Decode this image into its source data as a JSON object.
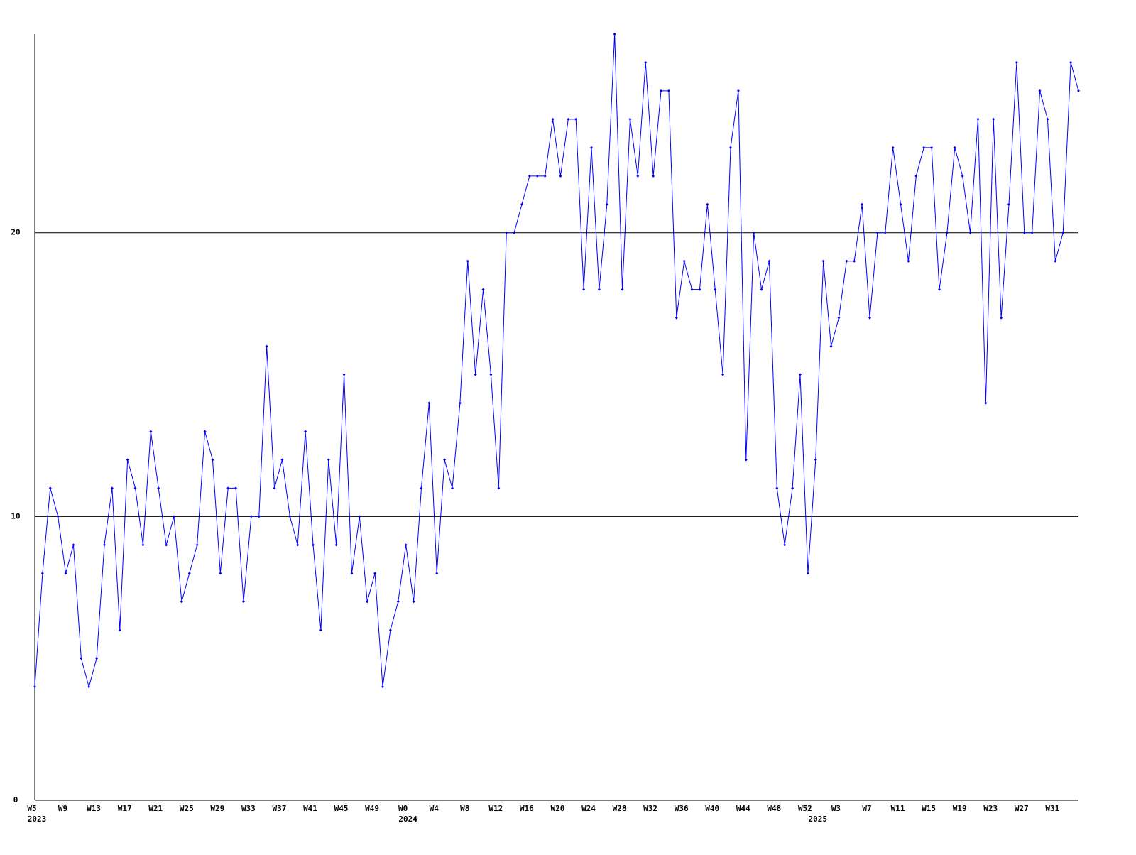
{
  "chart_data": {
    "type": "line",
    "categories": [
      "W5",
      null,
      null,
      null,
      "W9",
      null,
      null,
      null,
      "W13",
      null,
      null,
      null,
      "W17",
      null,
      null,
      null,
      "W21",
      null,
      null,
      null,
      "W25",
      null,
      null,
      null,
      "W29",
      null,
      null,
      null,
      "W33",
      null,
      null,
      null,
      "W37",
      null,
      null,
      null,
      "W41",
      null,
      null,
      null,
      "W45",
      null,
      null,
      null,
      "W49",
      null,
      null,
      null,
      "W0",
      null,
      null,
      null,
      "W4",
      null,
      null,
      null,
      "W8",
      null,
      null,
      null,
      "W12",
      null,
      null,
      null,
      "W16",
      null,
      null,
      null,
      "W20",
      null,
      null,
      null,
      "W24",
      null,
      null,
      null,
      "W28",
      null,
      null,
      null,
      "W32",
      null,
      null,
      null,
      "W36",
      null,
      null,
      null,
      "W40",
      null,
      null,
      null,
      "W44",
      null,
      null,
      null,
      "W48",
      null,
      null,
      null,
      "W52",
      null,
      null,
      null,
      "W3",
      null,
      null,
      null,
      "W7",
      null,
      null,
      null,
      "W11",
      null,
      null,
      null,
      "W15",
      null,
      null,
      null,
      "W19",
      null,
      null,
      null,
      "W23",
      null,
      null,
      null,
      "W27",
      null,
      null,
      null,
      "W31",
      null,
      null,
      null
    ],
    "category_groups": [
      "2023",
      null,
      null,
      null,
      null,
      null,
      null,
      null,
      null,
      null,
      null,
      null,
      null,
      null,
      null,
      null,
      null,
      null,
      null,
      null,
      null,
      null,
      null,
      null,
      null,
      null,
      null,
      null,
      null,
      null,
      null,
      null,
      null,
      null,
      null,
      null,
      null,
      null,
      null,
      null,
      null,
      null,
      null,
      null,
      null,
      null,
      null,
      null,
      "2024",
      null,
      null,
      null,
      null,
      null,
      null,
      null,
      null,
      null,
      null,
      null,
      null,
      null,
      null,
      null,
      null,
      null,
      null,
      null,
      null,
      null,
      null,
      null,
      null,
      null,
      null,
      null,
      null,
      null,
      null,
      null,
      null,
      null,
      null,
      null,
      null,
      null,
      null,
      null,
      null,
      null,
      null,
      null,
      null,
      null,
      null,
      null,
      null,
      null,
      null,
      null,
      null,
      "2025",
      null,
      null,
      null,
      null,
      null,
      null,
      null,
      null,
      null,
      null,
      null,
      null,
      null,
      null,
      null,
      null,
      null,
      null,
      null,
      null,
      null,
      null,
      null,
      null,
      null,
      null,
      null,
      null,
      null,
      null,
      null,
      null,
      null,
      null
    ],
    "series": [
      {
        "color": "#0000ff",
        "values": [
          4,
          8,
          11,
          10,
          8,
          9,
          5,
          4,
          5,
          9,
          11,
          6,
          12,
          11,
          9,
          13,
          11,
          9,
          10,
          7,
          8,
          9,
          13,
          12,
          8,
          11,
          11,
          7,
          10,
          10,
          16,
          11,
          12,
          10,
          9,
          13,
          9,
          6,
          12,
          9,
          15,
          8,
          10,
          7,
          8,
          4,
          6,
          7,
          9,
          7,
          11,
          14,
          8,
          12,
          11,
          14,
          19,
          15,
          18,
          15,
          11,
          20,
          20,
          21,
          22,
          22,
          22,
          24,
          22,
          24,
          24,
          18,
          23,
          18,
          21,
          27,
          18,
          24,
          22,
          26,
          22,
          25,
          25,
          17,
          19,
          18,
          18,
          21,
          18,
          15,
          23,
          25,
          12,
          20,
          18,
          19,
          11,
          9,
          11,
          15,
          8,
          12,
          19,
          16,
          17,
          19,
          19,
          21,
          17,
          20,
          20,
          23,
          21,
          19,
          22,
          23,
          23,
          18,
          20,
          23,
          22,
          20,
          24,
          14,
          24,
          17,
          21,
          26,
          20,
          20,
          25,
          24,
          19,
          20,
          26,
          25
        ]
      }
    ],
    "ylim": [
      0,
      27
    ],
    "yticks": [
      0,
      10,
      20
    ],
    "grid": true
  }
}
